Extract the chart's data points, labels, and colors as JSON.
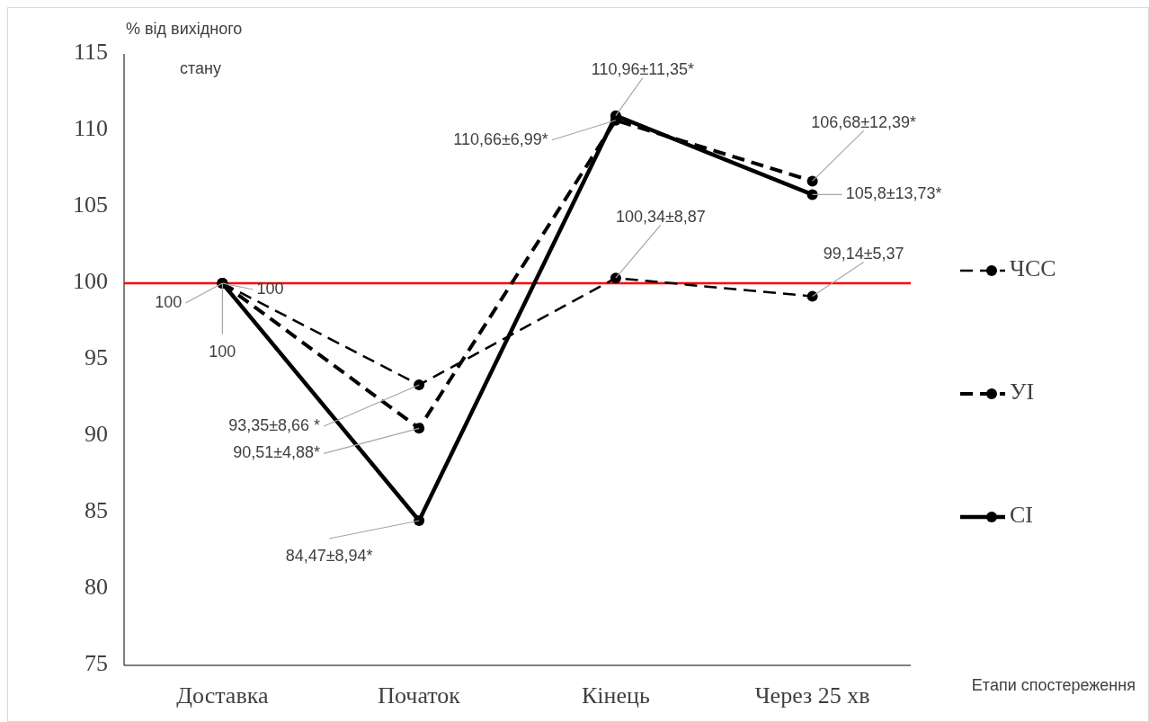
{
  "chart_data": {
    "type": "line",
    "ylabel": "% від вихідного стану",
    "xlabel": "Етапи спостереження",
    "categories": [
      "Доставка",
      "Початок",
      "Кінець",
      "Через 25 хв"
    ],
    "ylim": [
      75,
      115
    ],
    "yticks": [
      75,
      80,
      85,
      90,
      95,
      100,
      105,
      110,
      115
    ],
    "grid": false,
    "legend": "right",
    "marker": "circle",
    "series": [
      {
        "name": "ЧСС",
        "color": "#000000",
        "line_style": "dashed",
        "values": [
          100,
          93.35,
          100.34,
          99.14
        ],
        "value_labels": [
          "100",
          "93,35±8,66 *",
          "100,34±8,87",
          "99,14±5,37"
        ]
      },
      {
        "name": "УІ",
        "color": "#000000",
        "line_style": "dashed",
        "values": [
          100,
          90.51,
          110.66,
          106.68
        ],
        "value_labels": [
          "100",
          "90,51±4,88*",
          "110,66±6,99*",
          "106,68±12,39*"
        ]
      },
      {
        "name": "СІ",
        "color": "#000000",
        "line_style": "solid",
        "values": [
          100,
          84.47,
          110.96,
          105.8
        ],
        "value_labels": [
          "100",
          "84,47±8,94*",
          "110,96±11,35*",
          "105,8±13,73*"
        ]
      }
    ],
    "ref_lines": [
      {
        "axis": "y",
        "value": 100,
        "color": "#ff0000"
      }
    ]
  }
}
